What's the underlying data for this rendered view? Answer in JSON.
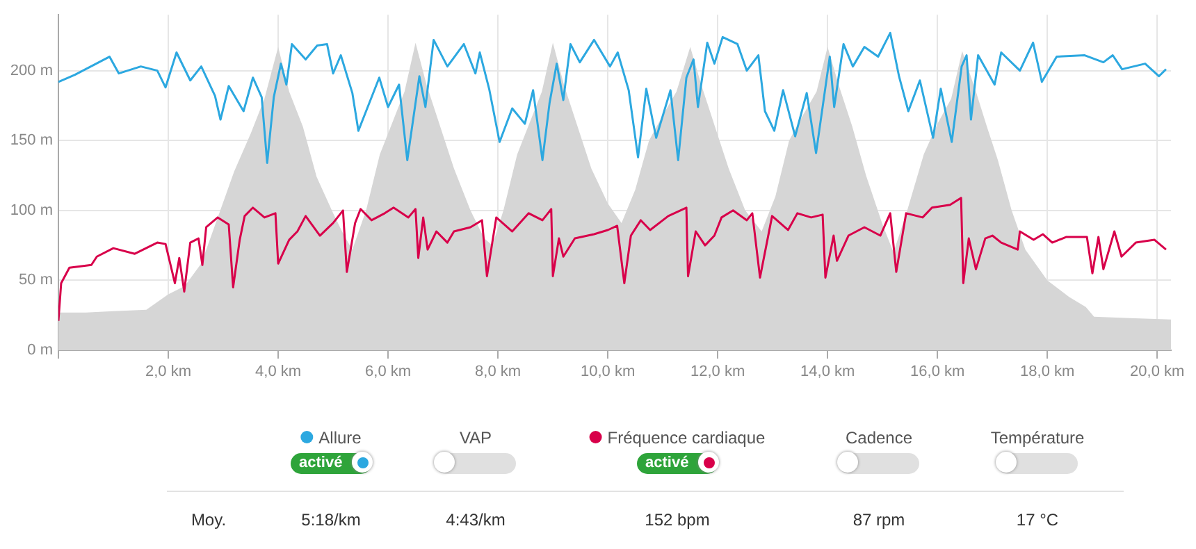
{
  "chart_data": {
    "type": "line",
    "legend": "bottom",
    "grid": true,
    "marker": "none",
    "line_style": "solid",
    "xlim": [
      0,
      20.25
    ],
    "xticks": [
      {
        "value": 0,
        "label": null
      },
      {
        "value": 2,
        "label": "2,0 km"
      },
      {
        "value": 4,
        "label": "4,0 km"
      },
      {
        "value": 6,
        "label": "6,0 km"
      },
      {
        "value": 8,
        "label": "8,0 km"
      },
      {
        "value": 10,
        "label": "10,0 km"
      },
      {
        "value": 12,
        "label": "12,0 km"
      },
      {
        "value": 14,
        "label": "14,0 km"
      },
      {
        "value": 16,
        "label": "16,0 km"
      },
      {
        "value": 18,
        "label": "18,0 km"
      },
      {
        "value": 20,
        "label": "20,0 km"
      }
    ],
    "ylim": [
      0,
      240
    ],
    "yticks": [
      {
        "value": 0,
        "label": "0 m"
      },
      {
        "value": 50,
        "label": "50 m"
      },
      {
        "value": 100,
        "label": "100 m"
      },
      {
        "value": 150,
        "label": "150 m"
      },
      {
        "value": 200,
        "label": "200 m"
      }
    ],
    "annotations": [
      "activé",
      "VAP",
      "Cadence",
      "Température",
      "Moy.",
      "5:18/km",
      "4:43/km",
      "152 bpm",
      "87 rpm",
      "17 °C"
    ],
    "series": [
      {
        "type": "area",
        "color": "#d6d6d6",
        "x": [
          0,
          0.5,
          1.0,
          1.6,
          2.0,
          2.3,
          2.6,
          2.9,
          3.2,
          3.5,
          3.75,
          4.0,
          4.2,
          4.45,
          4.7,
          5.0,
          5.2,
          5.35,
          5.6,
          5.85,
          6.1,
          6.3,
          6.5,
          6.7,
          6.95,
          7.2,
          7.5,
          7.75,
          7.9,
          8.1,
          8.35,
          8.6,
          8.8,
          9.0,
          9.2,
          9.45,
          9.7,
          10.0,
          10.25,
          10.5,
          10.75,
          11.0,
          11.25,
          11.5,
          11.7,
          11.95,
          12.2,
          12.5,
          12.8,
          13.05,
          13.3,
          13.55,
          13.8,
          14.0,
          14.2,
          14.45,
          14.7,
          15.0,
          15.2,
          15.45,
          15.75,
          16.0,
          16.25,
          16.45,
          16.7,
          16.9,
          17.1,
          17.35,
          17.6,
          18.0,
          18.4,
          18.7,
          18.85,
          19.5,
          20.25
        ],
        "values": [
          27,
          27,
          28,
          29,
          40,
          46,
          62,
          95,
          128,
          155,
          180,
          217,
          185,
          160,
          124,
          98,
          82,
          72,
          100,
          140,
          165,
          185,
          220,
          190,
          160,
          130,
          100,
          80,
          75,
          100,
          140,
          165,
          185,
          220,
          190,
          160,
          130,
          105,
          91,
          115,
          150,
          168,
          185,
          217,
          190,
          160,
          130,
          100,
          85,
          110,
          150,
          168,
          185,
          217,
          190,
          160,
          125,
          90,
          70,
          100,
          140,
          162,
          180,
          214,
          185,
          160,
          136,
          100,
          72,
          50,
          38,
          31,
          24,
          23,
          22
        ]
      },
      {
        "name": "Allure",
        "color": "#2ca8e0",
        "x": [
          0,
          0.3,
          0.93,
          1.1,
          1.5,
          1.8,
          1.95,
          2.15,
          2.4,
          2.6,
          2.85,
          2.95,
          3.1,
          3.37,
          3.54,
          3.7,
          3.8,
          3.92,
          4.05,
          4.15,
          4.25,
          4.5,
          4.71,
          4.89,
          5.0,
          5.14,
          5.35,
          5.46,
          5.6,
          5.84,
          6.0,
          6.2,
          6.35,
          6.57,
          6.68,
          6.83,
          7.08,
          7.38,
          7.59,
          7.67,
          7.84,
          8.03,
          8.26,
          8.49,
          8.64,
          8.81,
          8.94,
          9.07,
          9.19,
          9.32,
          9.49,
          9.75,
          10.04,
          10.18,
          10.38,
          10.55,
          10.7,
          10.88,
          11.14,
          11.28,
          11.43,
          11.56,
          11.64,
          11.81,
          11.94,
          12.09,
          12.36,
          12.53,
          12.74,
          12.86,
          13.03,
          13.19,
          13.41,
          13.62,
          13.79,
          14.04,
          14.12,
          14.29,
          14.46,
          14.67,
          14.92,
          15.14,
          15.3,
          15.47,
          15.68,
          15.92,
          16.06,
          16.26,
          16.44,
          16.53,
          16.61,
          16.74,
          17.04,
          17.16,
          17.5,
          17.74,
          17.9,
          18.17,
          18.68,
          19.02,
          19.19,
          19.36,
          19.78,
          20.03,
          20.16
        ],
        "values": [
          192,
          197,
          210,
          198,
          203,
          200,
          188,
          213,
          193,
          203,
          182,
          165,
          189,
          171,
          195,
          181,
          134,
          181,
          205,
          190,
          219,
          208,
          218,
          219,
          198,
          211,
          184,
          157,
          171,
          195,
          174,
          190,
          136,
          196,
          174,
          222,
          203,
          219,
          198,
          213,
          187,
          149,
          173,
          162,
          186,
          136,
          177,
          205,
          179,
          219,
          206,
          222,
          203,
          213,
          186,
          138,
          187,
          152,
          186,
          136,
          195,
          208,
          174,
          220,
          205,
          224,
          219,
          200,
          211,
          171,
          157,
          186,
          153,
          184,
          141,
          210,
          174,
          219,
          203,
          217,
          210,
          227,
          196,
          171,
          193,
          152,
          187,
          149,
          203,
          211,
          165,
          211,
          190,
          213,
          200,
          220,
          192,
          210,
          211,
          206,
          211,
          201,
          205,
          196,
          201
        ]
      },
      {
        "name": "Fréquence cardiaque",
        "color": "#d8004a",
        "x": [
          0,
          0.05,
          0.2,
          0.6,
          0.7,
          1.0,
          1.39,
          1.8,
          1.95,
          2.12,
          2.2,
          2.29,
          2.4,
          2.55,
          2.62,
          2.69,
          2.9,
          3.1,
          3.18,
          3.3,
          3.39,
          3.54,
          3.75,
          3.95,
          4.0,
          4.2,
          4.35,
          4.5,
          4.76,
          5.0,
          5.18,
          5.25,
          5.4,
          5.5,
          5.7,
          5.94,
          6.1,
          6.37,
          6.5,
          6.55,
          6.64,
          6.72,
          6.88,
          7.08,
          7.2,
          7.5,
          7.71,
          7.8,
          7.97,
          8.26,
          8.56,
          8.81,
          8.97,
          9.0,
          9.11,
          9.19,
          9.4,
          9.75,
          10.0,
          10.17,
          10.3,
          10.42,
          10.6,
          10.77,
          11.1,
          11.43,
          11.46,
          11.6,
          11.77,
          11.94,
          12.07,
          12.28,
          12.53,
          12.63,
          12.77,
          12.99,
          13.28,
          13.45,
          13.7,
          13.91,
          13.96,
          14.11,
          14.17,
          14.38,
          14.67,
          14.96,
          15.14,
          15.25,
          15.43,
          15.73,
          15.9,
          16.23,
          16.43,
          16.47,
          16.57,
          16.7,
          16.87,
          17.0,
          17.16,
          17.46,
          17.5,
          17.75,
          17.92,
          18.09,
          18.34,
          18.72,
          18.82,
          18.93,
          19.02,
          19.22,
          19.35,
          19.61,
          19.95,
          20.16
        ],
        "values": [
          21,
          48,
          59,
          61,
          67,
          73,
          69,
          77,
          76,
          48,
          66,
          42,
          77,
          80,
          61,
          88,
          95,
          90,
          45,
          79,
          96,
          102,
          95,
          98,
          62,
          79,
          85,
          96,
          82,
          91,
          100,
          56,
          91,
          101,
          93,
          98,
          102,
          95,
          101,
          66,
          95,
          72,
          85,
          77,
          85,
          88,
          93,
          53,
          95,
          85,
          98,
          93,
          101,
          53,
          80,
          67,
          80,
          83,
          86,
          89,
          48,
          82,
          93,
          86,
          96,
          102,
          53,
          85,
          75,
          82,
          95,
          100,
          93,
          98,
          52,
          96,
          86,
          98,
          95,
          97,
          52,
          82,
          64,
          82,
          88,
          82,
          98,
          56,
          98,
          95,
          102,
          104,
          109,
          48,
          80,
          58,
          80,
          82,
          77,
          72,
          85,
          79,
          83,
          77,
          81,
          81,
          55,
          81,
          58,
          85,
          67,
          77,
          79,
          72
        ]
      }
    ]
  }
}
